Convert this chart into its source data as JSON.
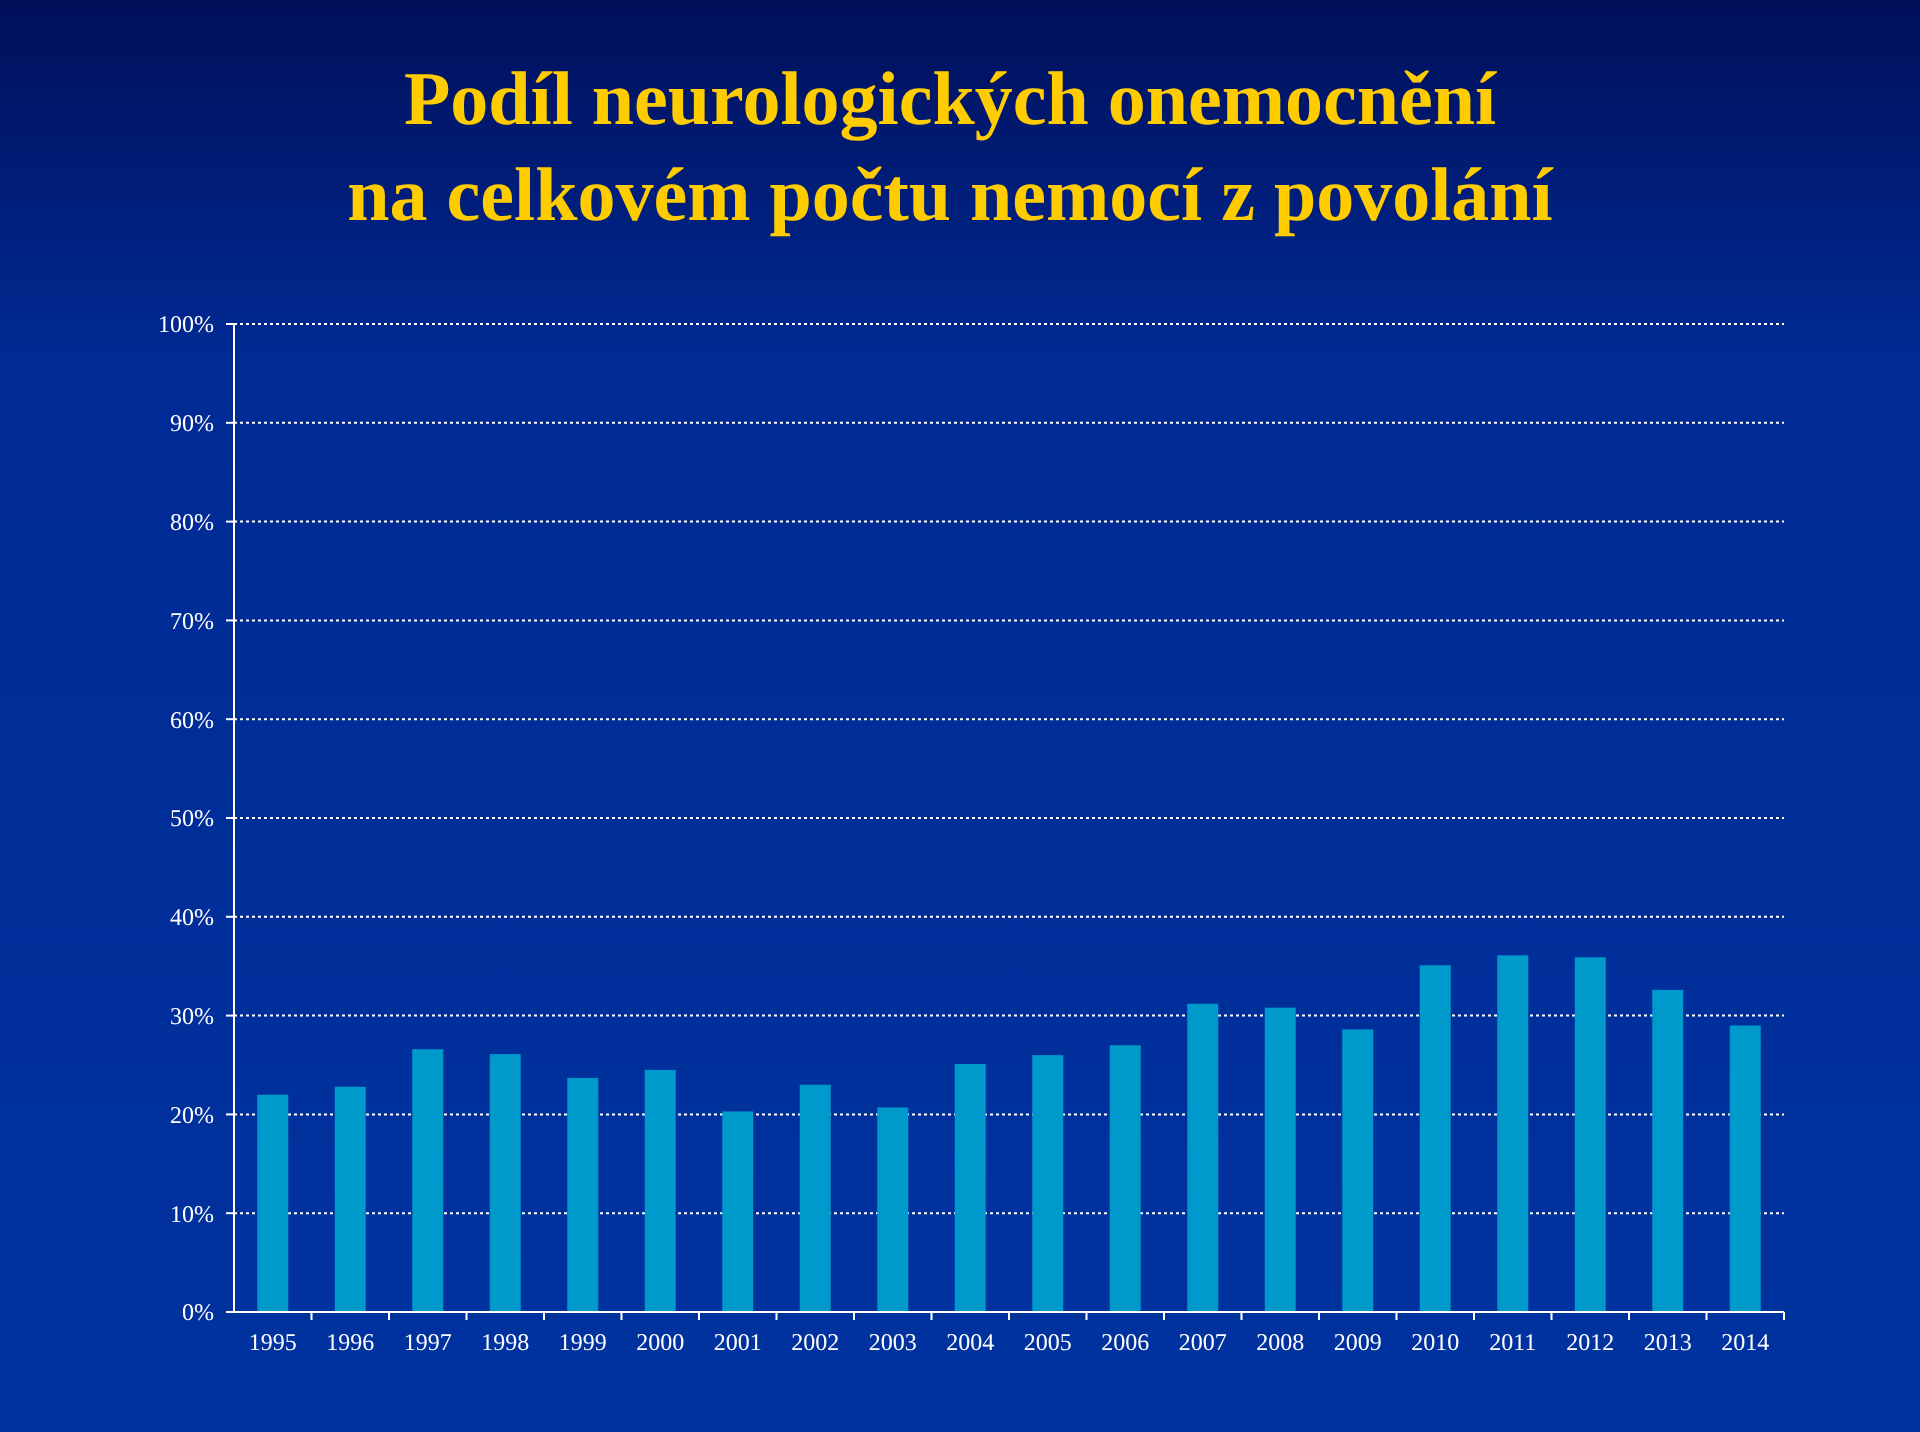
{
  "chart_data": {
    "type": "bar",
    "title": "Podíl neurologických onemocnění\nna celkovém počtu nemocí z povolání",
    "categories": [
      "1995",
      "1996",
      "1997",
      "1998",
      "1999",
      "2000",
      "2001",
      "2002",
      "2003",
      "2004",
      "2005",
      "2006",
      "2007",
      "2008",
      "2009",
      "2010",
      "2011",
      "2012",
      "2013",
      "2014"
    ],
    "values": [
      22.0,
      22.8,
      26.6,
      26.1,
      23.7,
      24.5,
      20.3,
      23.0,
      20.7,
      25.1,
      26.0,
      27.0,
      31.2,
      30.8,
      28.6,
      35.1,
      36.1,
      35.9,
      32.6,
      29.0
    ],
    "color": "#0099cc",
    "ylim": [
      0,
      100
    ],
    "yticks": [
      {
        "value": 0,
        "label": "0%"
      },
      {
        "value": 10,
        "label": "10%"
      },
      {
        "value": 20,
        "label": "20%"
      },
      {
        "value": 30,
        "label": "30%"
      },
      {
        "value": 40,
        "label": "40%"
      },
      {
        "value": 50,
        "label": "50%"
      },
      {
        "value": 60,
        "label": "60%"
      },
      {
        "value": 70,
        "label": "70%"
      },
      {
        "value": 80,
        "label": "80%"
      },
      {
        "value": 90,
        "label": "90%"
      },
      {
        "value": 100,
        "label": "100%"
      }
    ],
    "grid": "y"
  }
}
